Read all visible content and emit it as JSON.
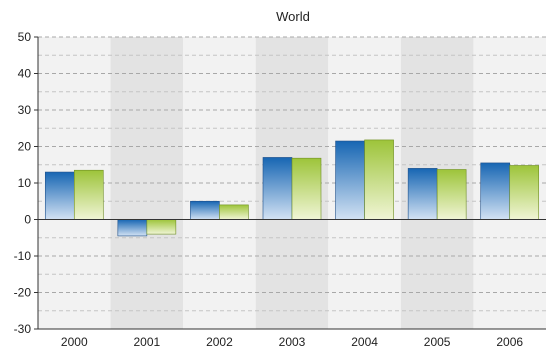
{
  "chart_data": {
    "type": "bar",
    "title": "World",
    "xlabel": "",
    "ylabel": "",
    "categories": [
      "2000",
      "2001",
      "2002",
      "2003",
      "2004",
      "2005",
      "2006"
    ],
    "series": [
      {
        "values": [
          13.0,
          -4.5,
          5.0,
          17.0,
          21.5,
          14.0,
          15.5
        ],
        "color": "#2e73b8"
      },
      {
        "values": [
          13.5,
          -4.0,
          4.0,
          16.8,
          21.8,
          13.7,
          14.8
        ],
        "color": "#a4c93c"
      }
    ],
    "ylim": [
      -30,
      50
    ],
    "yticks": [
      -30,
      -20,
      -10,
      0,
      10,
      20,
      30,
      40,
      50
    ],
    "grid": true,
    "alternating_bands": true,
    "legend": "none"
  }
}
